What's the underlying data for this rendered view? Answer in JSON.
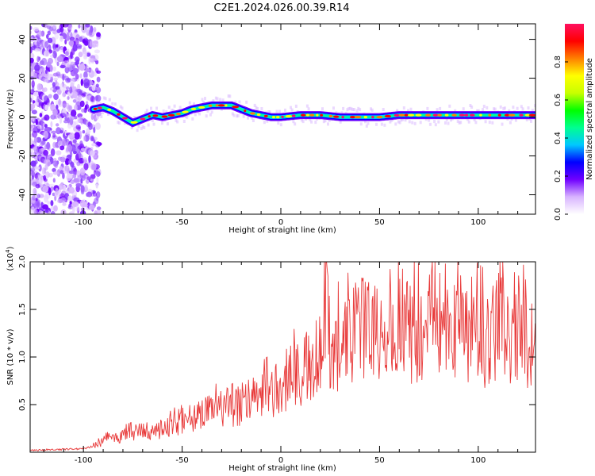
{
  "title": "C2E1.2024.026.00.39.R14",
  "colors": {
    "snr_line": "#e83a3a",
    "axis": "#000000",
    "background": "#ffffff"
  },
  "chart_data": [
    {
      "type": "heatmap",
      "xlabel": "Height of straight line (km)",
      "ylabel": "Frequency (Hz)",
      "xlim": [
        -127,
        129
      ],
      "ylim": [
        -50,
        48
      ],
      "xticks": [
        -100,
        -50,
        0,
        50,
        100
      ],
      "xtick_labels": [
        "-100",
        "-50",
        "0",
        "50",
        "100"
      ],
      "yticks": [
        -40,
        -20,
        0,
        20,
        40
      ],
      "ytick_labels": [
        "-40",
        "-20",
        "0",
        "20",
        "40"
      ],
      "noise_region_x": [
        -127,
        -92
      ],
      "ridge": {
        "x": [
          -95,
          -90,
          -85,
          -80,
          -75,
          -70,
          -65,
          -60,
          -55,
          -50,
          -45,
          -40,
          -35,
          -30,
          -25,
          -20,
          -15,
          -10,
          -5,
          0,
          10,
          20,
          30,
          40,
          50,
          60,
          70,
          80,
          90,
          100,
          110,
          120,
          129
        ],
        "y": [
          4,
          5,
          3,
          0,
          -3,
          -1,
          1,
          0,
          1,
          2,
          4,
          5,
          6,
          6,
          6,
          4,
          2,
          1,
          0,
          0,
          1,
          1,
          0,
          0,
          0,
          1,
          1,
          1,
          1,
          1,
          1,
          1,
          1
        ]
      },
      "colorbar": {
        "label": "Normalized spectral amplitude",
        "range": [
          0,
          1
        ],
        "ticks": [
          0.0,
          0.2,
          0.4,
          0.6,
          0.8
        ],
        "tick_labels": [
          "0.0",
          "0.2",
          "0.4",
          "0.6",
          "0.8"
        ],
        "colors": [
          "#ffffff",
          "#d8b4ff",
          "#7000ff",
          "#0000ff",
          "#00c8ff",
          "#00ff90",
          "#00ff00",
          "#c8ff00",
          "#ffff00",
          "#ff8000",
          "#ff0000",
          "#ff1060"
        ]
      },
      "grid": false
    },
    {
      "type": "line",
      "xlabel": "Height of straight line (km)",
      "ylabel": "SNR (10 * v/v)",
      "y_multiplier": "(x10",
      "y_multiplier_exp": "4",
      "xlim": [
        -127,
        129
      ],
      "ylim": [
        0,
        2.0
      ],
      "xticks": [
        -100,
        -50,
        0,
        50,
        100
      ],
      "xtick_labels": [
        "-100",
        "-50",
        "0",
        "50",
        "100"
      ],
      "yticks": [
        0.5,
        1.0,
        1.5,
        2.0
      ],
      "ytick_labels": [
        "0.5",
        "1.0",
        "1.5",
        "2.0"
      ],
      "series": [
        {
          "x": [
            -127,
            -110,
            -100,
            -95,
            -90,
            -85,
            -80,
            -75,
            -70,
            -65,
            -60,
            -55,
            -50,
            -45,
            -40,
            -35,
            -30,
            -25,
            -20,
            -15,
            -10,
            -5,
            0,
            5,
            10,
            15,
            20,
            22,
            25,
            30,
            35,
            40,
            45,
            50,
            55,
            60,
            65,
            70,
            75,
            80,
            85,
            90,
            95,
            100,
            105,
            110,
            115,
            120,
            123,
            126,
            129
          ],
          "y": [
            0.02,
            0.03,
            0.04,
            0.06,
            0.12,
            0.15,
            0.18,
            0.2,
            0.22,
            0.23,
            0.25,
            0.28,
            0.35,
            0.38,
            0.4,
            0.42,
            0.5,
            0.45,
            0.5,
            0.55,
            0.6,
            0.65,
            0.7,
            0.8,
            0.85,
            0.9,
            1.0,
            1.75,
            1.05,
            1.15,
            1.2,
            1.3,
            1.25,
            1.3,
            1.2,
            1.4,
            1.3,
            1.25,
            1.3,
            1.35,
            1.2,
            1.4,
            1.3,
            1.25,
            1.2,
            1.3,
            1.3,
            1.35,
            1.5,
            1.0,
            1.3
          ]
        }
      ],
      "grid": false
    }
  ]
}
